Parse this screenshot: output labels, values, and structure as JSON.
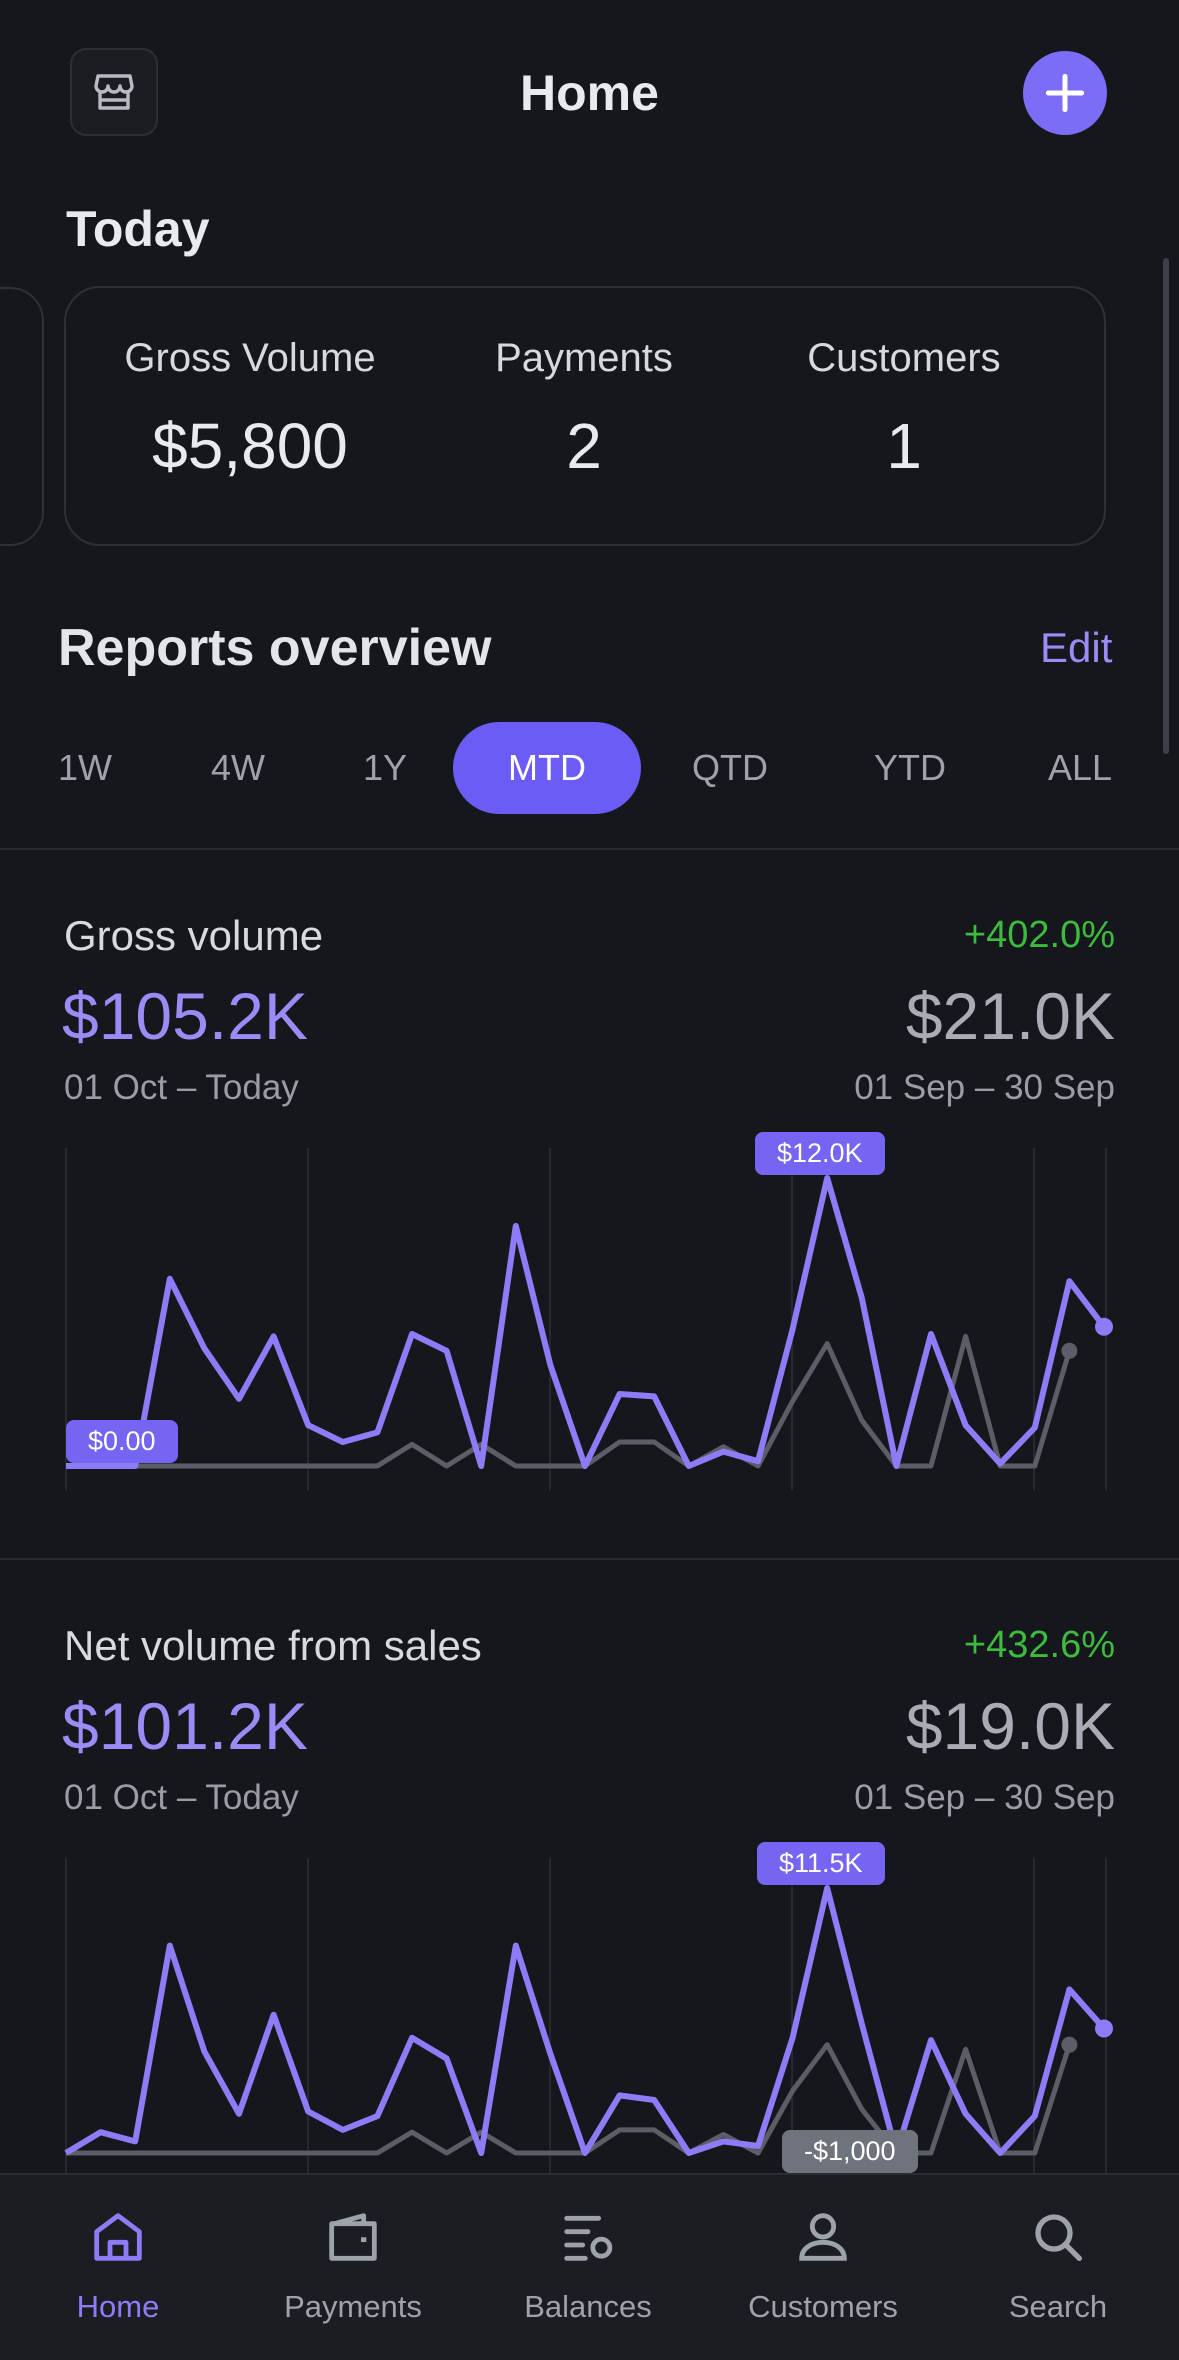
{
  "header": {
    "title": "Home"
  },
  "today": {
    "heading": "Today",
    "stats": [
      {
        "label": "Gross Volume",
        "value": "$5,800"
      },
      {
        "label": "Payments",
        "value": "2"
      },
      {
        "label": "Customers",
        "value": "1"
      }
    ]
  },
  "reports": {
    "heading": "Reports overview",
    "edit_label": "Edit",
    "ranges": [
      "1W",
      "4W",
      "1Y",
      "MTD",
      "QTD",
      "YTD",
      "ALL"
    ],
    "selected_range": "MTD"
  },
  "cards": [
    {
      "title": "Gross volume",
      "change": "+402.0%",
      "value": "$105.2K",
      "range": "01 Oct – Today",
      "prev_value": "$21.0K",
      "prev_range": "01 Sep – 30 Sep",
      "max_label": "$12.0K",
      "min_label": "$0.00",
      "chart_data": {
        "type": "line",
        "ylim": [
          0,
          12000
        ],
        "series": [
          {
            "values": [
              0,
              0,
              0,
              7800,
              4900,
              2800,
              5400,
              1700,
              1000,
              1400,
              5500,
              4800,
              0,
              10000,
              4200,
              0,
              3000,
              2900,
              0,
              600,
              200,
              5700,
              12000,
              7000,
              0,
              5500,
              1700,
              100,
              1600,
              7700,
              5800
            ]
          },
          {
            "values": [
              0,
              0,
              0,
              0,
              0,
              0,
              0,
              0,
              0,
              0,
              900,
              0,
              900,
              0,
              0,
              0,
              1000,
              1000,
              0,
              800,
              0,
              2700,
              5100,
              1900,
              0,
              0,
              5400,
              0,
              0,
              4800
            ]
          }
        ]
      }
    },
    {
      "title": "Net volume from sales",
      "change": "+432.6%",
      "value": "$101.2K",
      "range": "01 Oct – Today",
      "prev_value": "$19.0K",
      "prev_range": "01 Sep – 30 Sep",
      "max_label": "$11.5K",
      "min_label": "-$1,000",
      "chart_data": {
        "type": "line",
        "ylim": [
          -1000,
          11500
        ],
        "series": [
          {
            "values": [
              0,
              900,
              500,
              9000,
              4400,
              1700,
              6000,
              1800,
              1000,
              1600,
              5000,
              4100,
              0,
              9000,
              4300,
              0,
              2500,
              2300,
              0,
              500,
              300,
              5000,
              11500,
              5600,
              0,
              4900,
              1700,
              0,
              1600,
              7100,
              5400
            ]
          },
          {
            "values": [
              0,
              0,
              0,
              0,
              0,
              0,
              0,
              0,
              0,
              0,
              900,
              0,
              900,
              0,
              0,
              0,
              1000,
              1000,
              0,
              800,
              0,
              2700,
              4700,
              1900,
              0,
              0,
              4500,
              0,
              0,
              4700
            ]
          }
        ]
      }
    }
  ],
  "tabbar": {
    "items": [
      {
        "label": "Home",
        "icon": "home-icon",
        "active": true
      },
      {
        "label": "Payments",
        "icon": "wallet-icon",
        "active": false
      },
      {
        "label": "Balances",
        "icon": "balances-icon",
        "active": false
      },
      {
        "label": "Customers",
        "icon": "person-icon",
        "active": false
      },
      {
        "label": "Search",
        "icon": "search-icon",
        "active": false
      }
    ]
  },
  "colors": {
    "accent": "#8c7cf7",
    "selected_pill": "#6b5cf6",
    "positive": "#3dbb3f",
    "previous_series": "#5b5e66",
    "background": "#15171c"
  }
}
